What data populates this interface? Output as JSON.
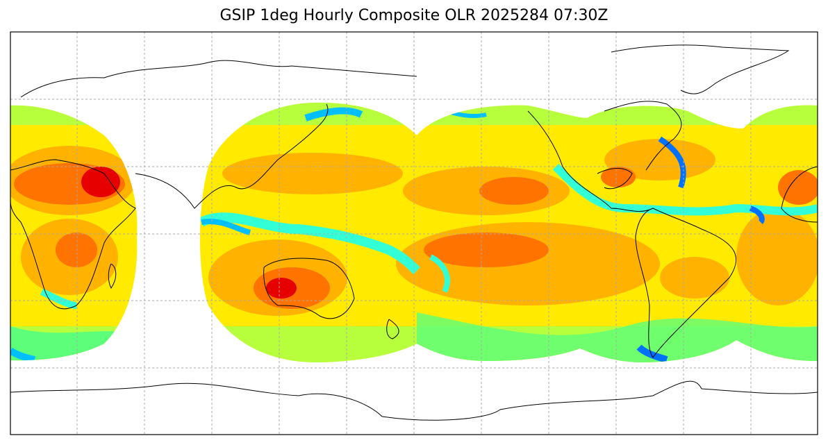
{
  "title": "GSIP 1deg Hourly Composite OLR 2025284 07:30Z",
  "colors": {
    "red": "#e60000",
    "orange_red": "#ff7300",
    "orange": "#ffb300",
    "yellow": "#ffea00",
    "yellow_green": "#b7ff3c",
    "green": "#5dff7a",
    "cyan": "#33ffd6",
    "light_blue": "#00bfff",
    "blue": "#0070ff",
    "coastline": "#000000",
    "grid": "#aaaaaa"
  }
}
